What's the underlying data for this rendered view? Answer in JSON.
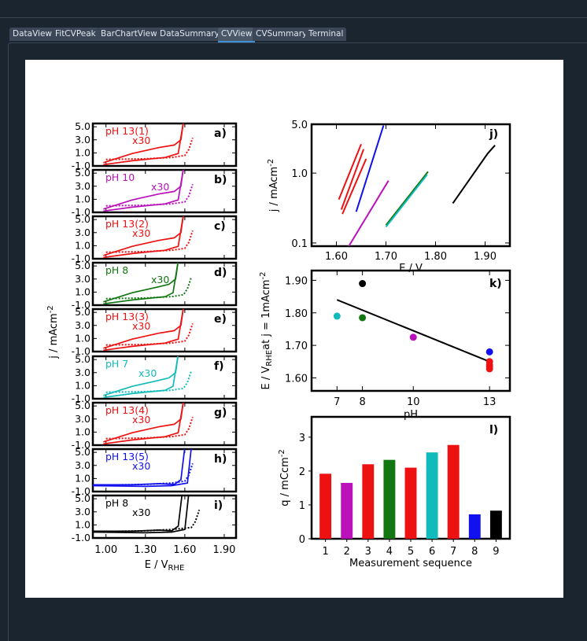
{
  "tabs": [
    {
      "label": "DataView",
      "active": false
    },
    {
      "label": "FitCVPeak",
      "active": false
    },
    {
      "label": "BarChartView",
      "active": false
    },
    {
      "label": "DataSummary",
      "active": false
    },
    {
      "label": "CVView",
      "active": true
    },
    {
      "label": "CVSummary",
      "active": false
    },
    {
      "label": "Terminal",
      "active": false
    }
  ],
  "colors": {
    "red": "#ee1111",
    "magenta": "#bb11bb",
    "green": "#117711",
    "cyan": "#11bbbb",
    "blue": "#1111ee",
    "black": "#000000",
    "accent": "#3d8fd8"
  },
  "cv_panels": {
    "ylabel": "j / mAcm",
    "ylabel_sup": "-2",
    "xlabel": "E / V",
    "xlabel_sub": "RHE",
    "yticks": [
      "5.0",
      "3.0",
      "1.0",
      "-1.0"
    ],
    "xticks": [
      "1.00",
      "1.30",
      "1.60",
      "1.90"
    ],
    "x_range": [
      0.9,
      1.99
    ],
    "y_range": [
      -1.0,
      5.5
    ],
    "rows": [
      {
        "letter": "a)",
        "label": "pH 13(1)",
        "note": "x30",
        "color": "red"
      },
      {
        "letter": "b)",
        "label": "pH 10",
        "note": "x30",
        "color": "magenta"
      },
      {
        "letter": "c)",
        "label": "pH 13(2)",
        "note": "x30",
        "color": "red"
      },
      {
        "letter": "d)",
        "label": "pH 8",
        "note": "x30",
        "color": "green"
      },
      {
        "letter": "e)",
        "label": "pH 13(3)",
        "note": "x30",
        "color": "red"
      },
      {
        "letter": "f)",
        "label": "pH 7",
        "note": "x30",
        "color": "cyan"
      },
      {
        "letter": "g)",
        "label": "pH 13(4)",
        "note": "x30",
        "color": "red"
      },
      {
        "letter": "h)",
        "label": "pH 13(5)",
        "note": "x30",
        "color": "blue"
      },
      {
        "letter": "i)",
        "label": "pH 8",
        "note": "x30",
        "color": "black"
      }
    ]
  },
  "chart_data": [
    {
      "type": "line",
      "panel": "j)",
      "xlabel": "E / V",
      "ylabel": "j / mAcm",
      "ylabel_sup": "-2",
      "yscale": "log",
      "xlim": [
        1.55,
        1.95
      ],
      "ylim": [
        0.09,
        5.0
      ],
      "xticks": [
        "1.60",
        "1.70",
        "1.80",
        "1.90"
      ],
      "yticks": [
        "5.0",
        "1.0",
        "0.1"
      ],
      "series": [
        {
          "color": "red",
          "x": [
            1.605,
            1.65
          ],
          "y": [
            0.42,
            2.6
          ]
        },
        {
          "color": "red",
          "x": [
            1.61,
            1.655
          ],
          "y": [
            0.3,
            2.2
          ]
        },
        {
          "color": "red",
          "x": [
            1.612,
            1.66
          ],
          "y": [
            0.26,
            1.6
          ]
        },
        {
          "color": "blue",
          "x": [
            1.64,
            1.695
          ],
          "y": [
            0.28,
            4.8
          ]
        },
        {
          "color": "magenta",
          "x": [
            1.625,
            1.705
          ],
          "y": [
            0.09,
            0.78
          ]
        },
        {
          "color": "green",
          "x": [
            1.7,
            1.785
          ],
          "y": [
            0.18,
            1.05
          ]
        },
        {
          "color": "cyan",
          "x": [
            1.7,
            1.783
          ],
          "y": [
            0.17,
            0.95
          ]
        },
        {
          "color": "black",
          "x": [
            1.835,
            1.905,
            1.92
          ],
          "y": [
            0.37,
            1.9,
            2.5
          ]
        }
      ]
    },
    {
      "type": "scatter",
      "panel": "k)",
      "xlabel": "pH",
      "ylabel_parts": [
        "E / V",
        "RHE",
        "at j = 1mAcm",
        "-2"
      ],
      "xlim": [
        6.0,
        13.8
      ],
      "ylim": [
        1.56,
        1.93
      ],
      "xticks": [
        "7",
        "8",
        "10",
        "13"
      ],
      "yticks": [
        "1.90",
        "1.80",
        "1.70",
        "1.60"
      ],
      "points": [
        {
          "x": 7,
          "y": 1.79,
          "color": "cyan"
        },
        {
          "x": 8,
          "y": 1.89,
          "color": "black"
        },
        {
          "x": 8,
          "y": 1.785,
          "color": "green"
        },
        {
          "x": 10,
          "y": 1.725,
          "color": "magenta"
        },
        {
          "x": 13,
          "y": 1.68,
          "color": "blue"
        },
        {
          "x": 13,
          "y": 1.65,
          "color": "red"
        },
        {
          "x": 13,
          "y": 1.64,
          "color": "red"
        },
        {
          "x": 13,
          "y": 1.635,
          "color": "red"
        },
        {
          "x": 13,
          "y": 1.628,
          "color": "red"
        }
      ],
      "fit_line": {
        "x": [
          7,
          13
        ],
        "y": [
          1.84,
          1.65
        ]
      }
    },
    {
      "type": "bar",
      "panel": "l)",
      "xlabel": "Measurement sequence",
      "ylabel": "q / mCcm",
      "ylabel_sup": "-2",
      "ylim": [
        0,
        3.6
      ],
      "yticks": [
        "0",
        "1",
        "2",
        "3"
      ],
      "categories": [
        "1",
        "2",
        "3",
        "4",
        "5",
        "6",
        "7",
        "8",
        "9"
      ],
      "values": [
        1.92,
        1.65,
        2.2,
        2.33,
        2.1,
        2.55,
        2.77,
        0.72,
        0.83
      ],
      "colors": [
        "red",
        "magenta",
        "red",
        "green",
        "red",
        "cyan",
        "red",
        "blue",
        "black"
      ]
    }
  ]
}
